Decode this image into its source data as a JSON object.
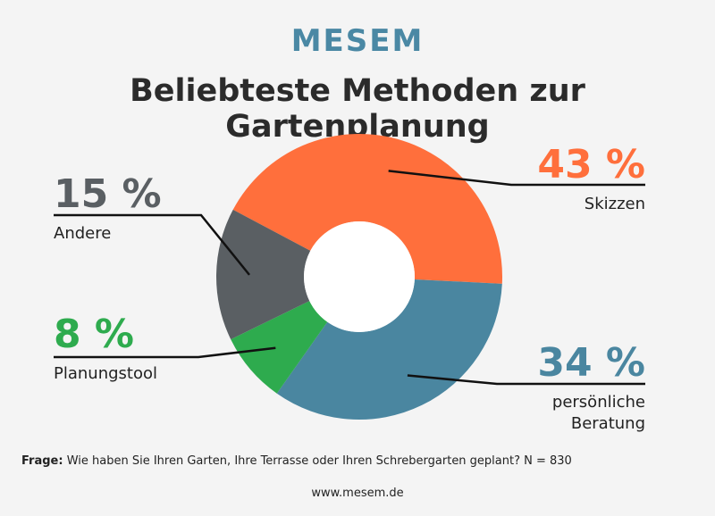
{
  "brand": "MESEM",
  "chart_data": {
    "type": "pie",
    "title": "Beliebteste Methoden zur Gartenplanung",
    "slices": [
      {
        "label": "Skizzen",
        "value": 43,
        "value_text": "43 %",
        "color": "#ff6f3c"
      },
      {
        "label": "persönliche Beratung",
        "label_lines": [
          "persönliche",
          "Beratung"
        ],
        "value": 34,
        "value_text": "34 %",
        "color": "#4a86a0"
      },
      {
        "label": "Planungstool",
        "value": 8,
        "value_text": "8 %",
        "color": "#2eab4e"
      },
      {
        "label": "Andere",
        "value": 15,
        "value_text": "15 %",
        "color": "#5a5f63"
      }
    ]
  },
  "footer": {
    "question_label": "Frage:",
    "question_text": " Wie haben Sie Ihren Garten, Ihre Terrasse oder Ihren Schrebergarten geplant? N = 830"
  },
  "website": "www.mesem.de"
}
